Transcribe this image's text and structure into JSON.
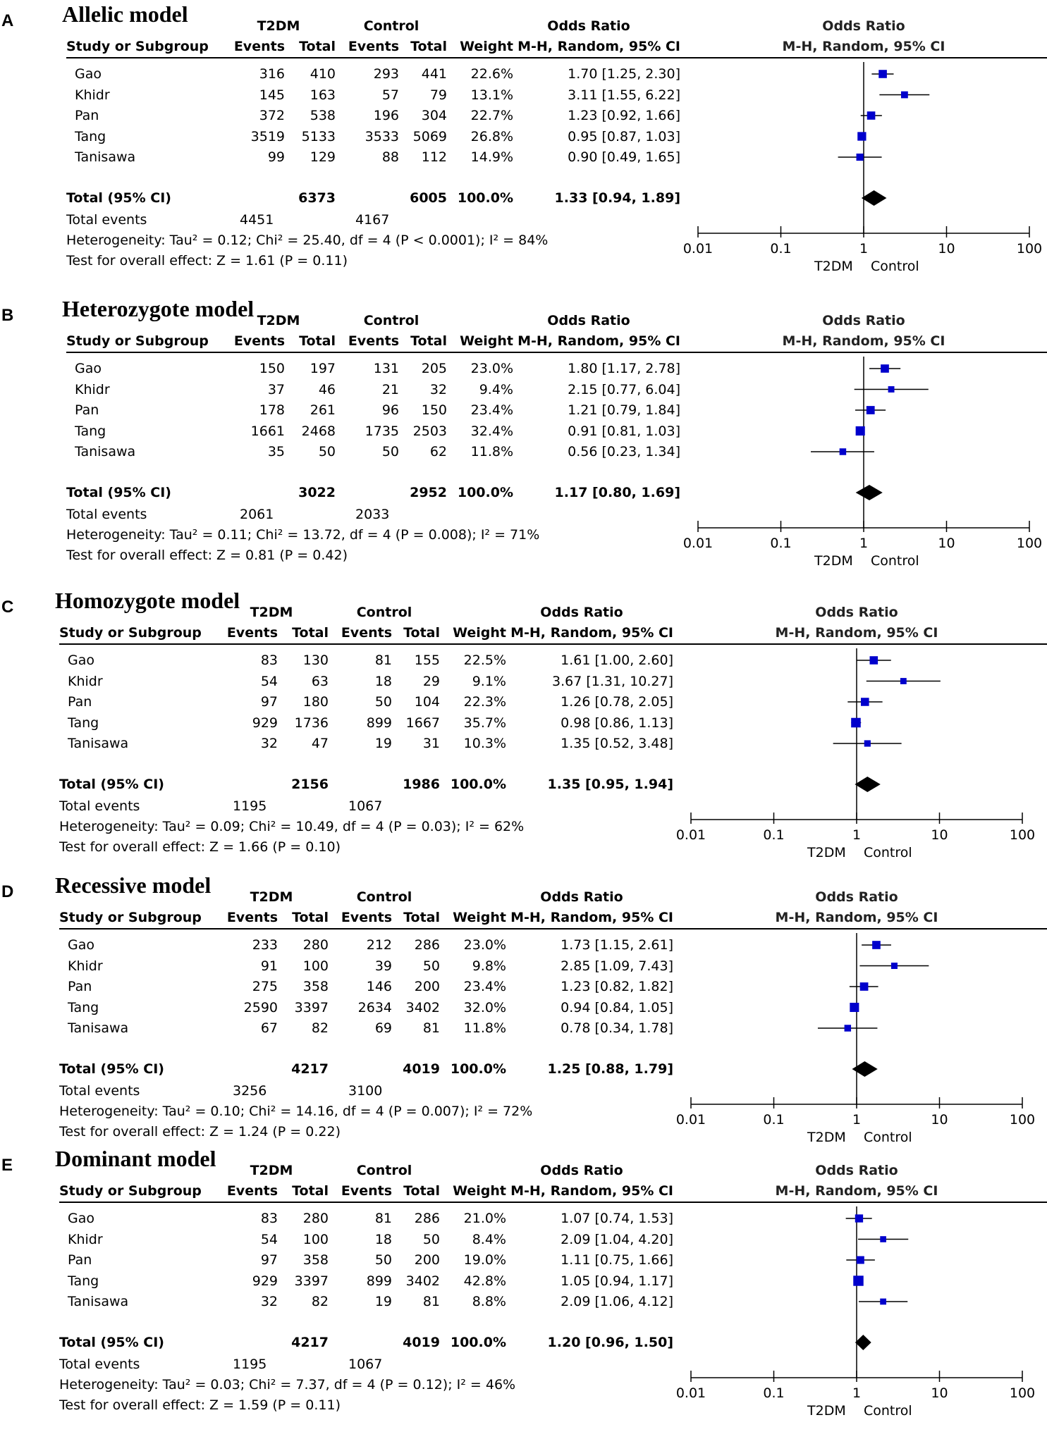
{
  "headers": {
    "group1": "T2DM",
    "group2": "Control",
    "or": "Odds Ratio",
    "study": "Study or Subgroup",
    "events": "Events",
    "total": "Total",
    "weight": "Weight",
    "method": "M-H, Random, 95% CI",
    "axis_left": "T2DM",
    "axis_right": "Control",
    "total_label": "Total (95% CI)",
    "total_events_label": "Total events"
  },
  "axis_ticks": [
    "0.01",
    "0.1",
    "1",
    "10",
    "100"
  ],
  "colors": {
    "square": "#0000cc",
    "diamond": "#000000",
    "line": "#000000"
  },
  "chart_data": [
    {
      "type": "forest",
      "letter": "A",
      "title": "Allelic model",
      "xscale": "log",
      "xlim": [
        0.01,
        100
      ],
      "studies": [
        {
          "name": "Gao",
          "e1": "316",
          "t1": "410",
          "e2": "293",
          "t2": "441",
          "weight": "22.6%",
          "ci_text": "1.70 [1.25, 2.30]",
          "or": 1.7,
          "lo": 1.25,
          "hi": 2.3,
          "w": 22.6
        },
        {
          "name": "Khidr",
          "e1": "145",
          "t1": "163",
          "e2": "57",
          "t2": "79",
          "weight": "13.1%",
          "ci_text": "3.11 [1.55, 6.22]",
          "or": 3.11,
          "lo": 1.55,
          "hi": 6.22,
          "w": 13.1
        },
        {
          "name": "Pan",
          "e1": "372",
          "t1": "538",
          "e2": "196",
          "t2": "304",
          "weight": "22.7%",
          "ci_text": "1.23 [0.92, 1.66]",
          "or": 1.23,
          "lo": 0.92,
          "hi": 1.66,
          "w": 22.7
        },
        {
          "name": "Tang",
          "e1": "3519",
          "t1": "5133",
          "e2": "3533",
          "t2": "5069",
          "weight": "26.8%",
          "ci_text": "0.95 [0.87, 1.03]",
          "or": 0.95,
          "lo": 0.87,
          "hi": 1.03,
          "w": 26.8
        },
        {
          "name": "Tanisawa",
          "e1": "99",
          "t1": "129",
          "e2": "88",
          "t2": "112",
          "weight": "14.9%",
          "ci_text": "0.90 [0.49, 1.65]",
          "or": 0.9,
          "lo": 0.49,
          "hi": 1.65,
          "w": 14.9
        }
      ],
      "total": {
        "t1": "6373",
        "t2": "6005",
        "weight": "100.0%",
        "ci_text": "1.33 [0.94, 1.89]",
        "or": 1.33,
        "lo": 0.94,
        "hi": 1.89
      },
      "total_events": {
        "e1": "4451",
        "e2": "4167"
      },
      "heterogeneity": "Heterogeneity: Tau² = 0.12; Chi² = 25.40, df = 4 (P < 0.0001); I² = 84%",
      "overall": "Test for overall effect: Z = 1.61 (P = 0.11)"
    },
    {
      "type": "forest",
      "letter": "B",
      "title": "Heterozygote model",
      "xscale": "log",
      "xlim": [
        0.01,
        100
      ],
      "studies": [
        {
          "name": "Gao",
          "e1": "150",
          "t1": "197",
          "e2": "131",
          "t2": "205",
          "weight": "23.0%",
          "ci_text": "1.80 [1.17, 2.78]",
          "or": 1.8,
          "lo": 1.17,
          "hi": 2.78,
          "w": 23.0
        },
        {
          "name": "Khidr",
          "e1": "37",
          "t1": "46",
          "e2": "21",
          "t2": "32",
          "weight": "9.4%",
          "ci_text": "2.15 [0.77, 6.04]",
          "or": 2.15,
          "lo": 0.77,
          "hi": 6.04,
          "w": 9.4
        },
        {
          "name": "Pan",
          "e1": "178",
          "t1": "261",
          "e2": "96",
          "t2": "150",
          "weight": "23.4%",
          "ci_text": "1.21 [0.79, 1.84]",
          "or": 1.21,
          "lo": 0.79,
          "hi": 1.84,
          "w": 23.4
        },
        {
          "name": "Tang",
          "e1": "1661",
          "t1": "2468",
          "e2": "1735",
          "t2": "2503",
          "weight": "32.4%",
          "ci_text": "0.91 [0.81, 1.03]",
          "or": 0.91,
          "lo": 0.81,
          "hi": 1.03,
          "w": 32.4
        },
        {
          "name": "Tanisawa",
          "e1": "35",
          "t1": "50",
          "e2": "50",
          "t2": "62",
          "weight": "11.8%",
          "ci_text": "0.56 [0.23, 1.34]",
          "or": 0.56,
          "lo": 0.23,
          "hi": 1.34,
          "w": 11.8
        }
      ],
      "total": {
        "t1": "3022",
        "t2": "2952",
        "weight": "100.0%",
        "ci_text": "1.17 [0.80, 1.69]",
        "or": 1.17,
        "lo": 0.8,
        "hi": 1.69
      },
      "total_events": {
        "e1": "2061",
        "e2": "2033"
      },
      "heterogeneity": "Heterogeneity: Tau² = 0.11; Chi² = 13.72, df = 4 (P = 0.008); I² = 71%",
      "overall": "Test for overall effect: Z = 0.81 (P = 0.42)"
    },
    {
      "type": "forest",
      "letter": "C",
      "title": "Homozygote model",
      "xscale": "log",
      "xlim": [
        0.01,
        100
      ],
      "studies": [
        {
          "name": "Gao",
          "e1": "83",
          "t1": "130",
          "e2": "81",
          "t2": "155",
          "weight": "22.5%",
          "ci_text": "1.61 [1.00, 2.60]",
          "or": 1.61,
          "lo": 1.0,
          "hi": 2.6,
          "w": 22.5
        },
        {
          "name": "Khidr",
          "e1": "54",
          "t1": "63",
          "e2": "18",
          "t2": "29",
          "weight": "9.1%",
          "ci_text": "3.67 [1.31, 10.27]",
          "or": 3.67,
          "lo": 1.31,
          "hi": 10.27,
          "w": 9.1
        },
        {
          "name": "Pan",
          "e1": "97",
          "t1": "180",
          "e2": "50",
          "t2": "104",
          "weight": "22.3%",
          "ci_text": "1.26 [0.78, 2.05]",
          "or": 1.26,
          "lo": 0.78,
          "hi": 2.05,
          "w": 22.3
        },
        {
          "name": "Tang",
          "e1": "929",
          "t1": "1736",
          "e2": "899",
          "t2": "1667",
          "weight": "35.7%",
          "ci_text": "0.98 [0.86, 1.13]",
          "or": 0.98,
          "lo": 0.86,
          "hi": 1.13,
          "w": 35.7
        },
        {
          "name": "Tanisawa",
          "e1": "32",
          "t1": "47",
          "e2": "19",
          "t2": "31",
          "weight": "10.3%",
          "ci_text": "1.35 [0.52, 3.48]",
          "or": 1.35,
          "lo": 0.52,
          "hi": 3.48,
          "w": 10.3
        }
      ],
      "total": {
        "t1": "2156",
        "t2": "1986",
        "weight": "100.0%",
        "ci_text": "1.35 [0.95, 1.94]",
        "or": 1.35,
        "lo": 0.95,
        "hi": 1.94
      },
      "total_events": {
        "e1": "1195",
        "e2": "1067"
      },
      "heterogeneity": "Heterogeneity: Tau² = 0.09; Chi² = 10.49, df = 4 (P = 0.03); I² = 62%",
      "overall": "Test for overall effect: Z = 1.66 (P = 0.10)"
    },
    {
      "type": "forest",
      "letter": "D",
      "title": "Recessive model",
      "xscale": "log",
      "xlim": [
        0.01,
        100
      ],
      "studies": [
        {
          "name": "Gao",
          "e1": "233",
          "t1": "280",
          "e2": "212",
          "t2": "286",
          "weight": "23.0%",
          "ci_text": "1.73 [1.15, 2.61]",
          "or": 1.73,
          "lo": 1.15,
          "hi": 2.61,
          "w": 23.0
        },
        {
          "name": "Khidr",
          "e1": "91",
          "t1": "100",
          "e2": "39",
          "t2": "50",
          "weight": "9.8%",
          "ci_text": "2.85 [1.09, 7.43]",
          "or": 2.85,
          "lo": 1.09,
          "hi": 7.43,
          "w": 9.8
        },
        {
          "name": "Pan",
          "e1": "275",
          "t1": "358",
          "e2": "146",
          "t2": "200",
          "weight": "23.4%",
          "ci_text": "1.23 [0.82, 1.82]",
          "or": 1.23,
          "lo": 0.82,
          "hi": 1.82,
          "w": 23.4
        },
        {
          "name": "Tang",
          "e1": "2590",
          "t1": "3397",
          "e2": "2634",
          "t2": "3402",
          "weight": "32.0%",
          "ci_text": "0.94 [0.84, 1.05]",
          "or": 0.94,
          "lo": 0.84,
          "hi": 1.05,
          "w": 32.0
        },
        {
          "name": "Tanisawa",
          "e1": "67",
          "t1": "82",
          "e2": "69",
          "t2": "81",
          "weight": "11.8%",
          "ci_text": "0.78 [0.34, 1.78]",
          "or": 0.78,
          "lo": 0.34,
          "hi": 1.78,
          "w": 11.8
        }
      ],
      "total": {
        "t1": "4217",
        "t2": "4019",
        "weight": "100.0%",
        "ci_text": "1.25 [0.88, 1.79]",
        "or": 1.25,
        "lo": 0.88,
        "hi": 1.79
      },
      "total_events": {
        "e1": "3256",
        "e2": "3100"
      },
      "heterogeneity": "Heterogeneity: Tau² = 0.10; Chi² = 14.16, df = 4 (P = 0.007); I² = 72%",
      "overall": "Test for overall effect: Z = 1.24 (P = 0.22)"
    },
    {
      "type": "forest",
      "letter": "E",
      "title": "Dominant  model",
      "xscale": "log",
      "xlim": [
        0.01,
        100
      ],
      "studies": [
        {
          "name": "Gao",
          "e1": "83",
          "t1": "280",
          "e2": "81",
          "t2": "286",
          "weight": "21.0%",
          "ci_text": "1.07 [0.74, 1.53]",
          "or": 1.07,
          "lo": 0.74,
          "hi": 1.53,
          "w": 21.0
        },
        {
          "name": "Khidr",
          "e1": "54",
          "t1": "100",
          "e2": "18",
          "t2": "50",
          "weight": "8.4%",
          "ci_text": "2.09 [1.04, 4.20]",
          "or": 2.09,
          "lo": 1.04,
          "hi": 4.2,
          "w": 8.4
        },
        {
          "name": "Pan",
          "e1": "97",
          "t1": "358",
          "e2": "50",
          "t2": "200",
          "weight": "19.0%",
          "ci_text": "1.11 [0.75, 1.66]",
          "or": 1.11,
          "lo": 0.75,
          "hi": 1.66,
          "w": 19.0
        },
        {
          "name": "Tang",
          "e1": "929",
          "t1": "3397",
          "e2": "899",
          "t2": "3402",
          "weight": "42.8%",
          "ci_text": "1.05 [0.94, 1.17]",
          "or": 1.05,
          "lo": 0.94,
          "hi": 1.17,
          "w": 42.8
        },
        {
          "name": "Tanisawa",
          "e1": "32",
          "t1": "82",
          "e2": "19",
          "t2": "81",
          "weight": "8.8%",
          "ci_text": "2.09 [1.06, 4.12]",
          "or": 2.09,
          "lo": 1.06,
          "hi": 4.12,
          "w": 8.8
        }
      ],
      "total": {
        "t1": "4217",
        "t2": "4019",
        "weight": "100.0%",
        "ci_text": "1.20 [0.96, 1.50]",
        "or": 1.2,
        "lo": 0.96,
        "hi": 1.5
      },
      "total_events": {
        "e1": "1195",
        "e2": "1067"
      },
      "heterogeneity": "Heterogeneity: Tau² = 0.03; Chi² = 7.37, df = 4 (P = 0.12); I² = 46%",
      "overall": "Test for overall effect: Z = 1.59 (P = 0.11)"
    }
  ]
}
